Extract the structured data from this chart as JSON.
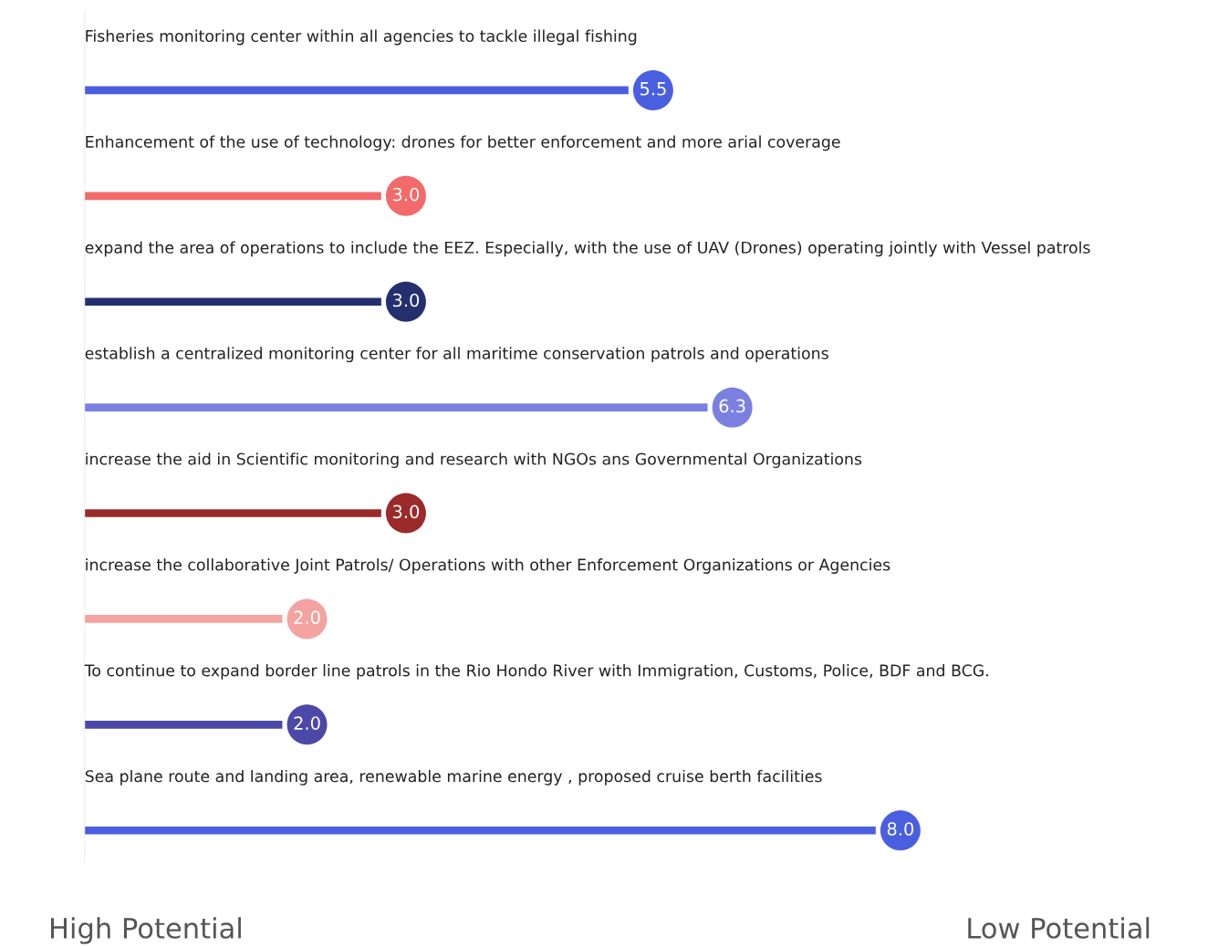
{
  "chart_data": {
    "type": "bar",
    "orientation": "horizontal",
    "categories": [
      "Fisheries monitoring center within all agencies to tackle illegal fishing",
      "Enhancement of the use of technology: drones for better enforcement and more arial coverage",
      "expand the area of operations to include the EEZ. Especially, with the use of UAV (Drones) operating jointly with Vessel patrols",
      "establish a centralized monitoring center for all maritime conservation patrols and operations",
      "increase the aid in Scientific monitoring and research with NGOs ans Governmental Organizations",
      "increase the collaborative Joint Patrols/ Operations with other Enforcement Organizations or Agencies",
      "To continue to expand border line patrols in the Rio Hondo River with Immigration, Customs, Police, BDF and BCG.",
      "Sea plane route and landing area, renewable marine energy , proposed cruise berth facilities"
    ],
    "values": [
      5.5,
      3.0,
      3.0,
      6.3,
      3.0,
      2.0,
      2.0,
      8.0
    ],
    "value_labels": [
      "5.5",
      "3.0",
      "3.0",
      "6.3",
      "3.0",
      "2.0",
      "2.0",
      "8.0"
    ],
    "colors": [
      "#4a5fe0",
      "#f26a6a",
      "#24306e",
      "#7b80e0",
      "#9b2a2a",
      "#f4a3a0",
      "#4b48a8",
      "#4a5fe0"
    ],
    "annotations": [
      "High Potential",
      "Low Potential"
    ]
  }
}
